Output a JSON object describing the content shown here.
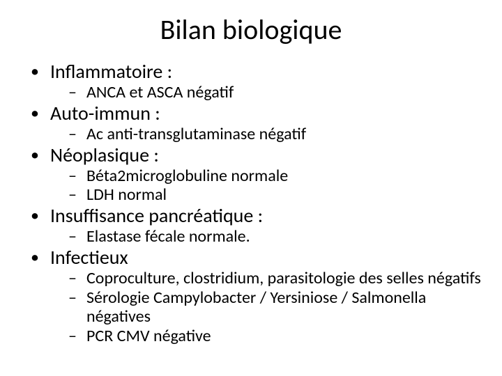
{
  "title": "Bilan biologique",
  "typography": {
    "title_fontsize_pt": 40,
    "lvl1_fontsize_pt": 28,
    "lvl2_fontsize_pt": 24,
    "font_family": "Calibri",
    "text_color": "#000000",
    "background_color": "#ffffff"
  },
  "bullets": [
    {
      "label": "Inflammatoire :",
      "sub": [
        "ANCA et ASCA négatif"
      ]
    },
    {
      "label": "Auto-immun :",
      "sub": [
        "Ac anti-transglutaminase négatif"
      ]
    },
    {
      "label": "Néoplasique :",
      "sub": [
        "Béta2microglobuline normale",
        "LDH normal"
      ]
    },
    {
      "label": "Insuffisance pancréatique :",
      "sub": [
        "Elastase fécale normale."
      ]
    },
    {
      "label": "Infectieux",
      "sub": [
        "Coproculture, clostridium, parasitologie des selles négatifs",
        "Sérologie Campylobacter / Yersiniose / Salmonella négatives",
        "PCR CMV négative"
      ]
    }
  ]
}
